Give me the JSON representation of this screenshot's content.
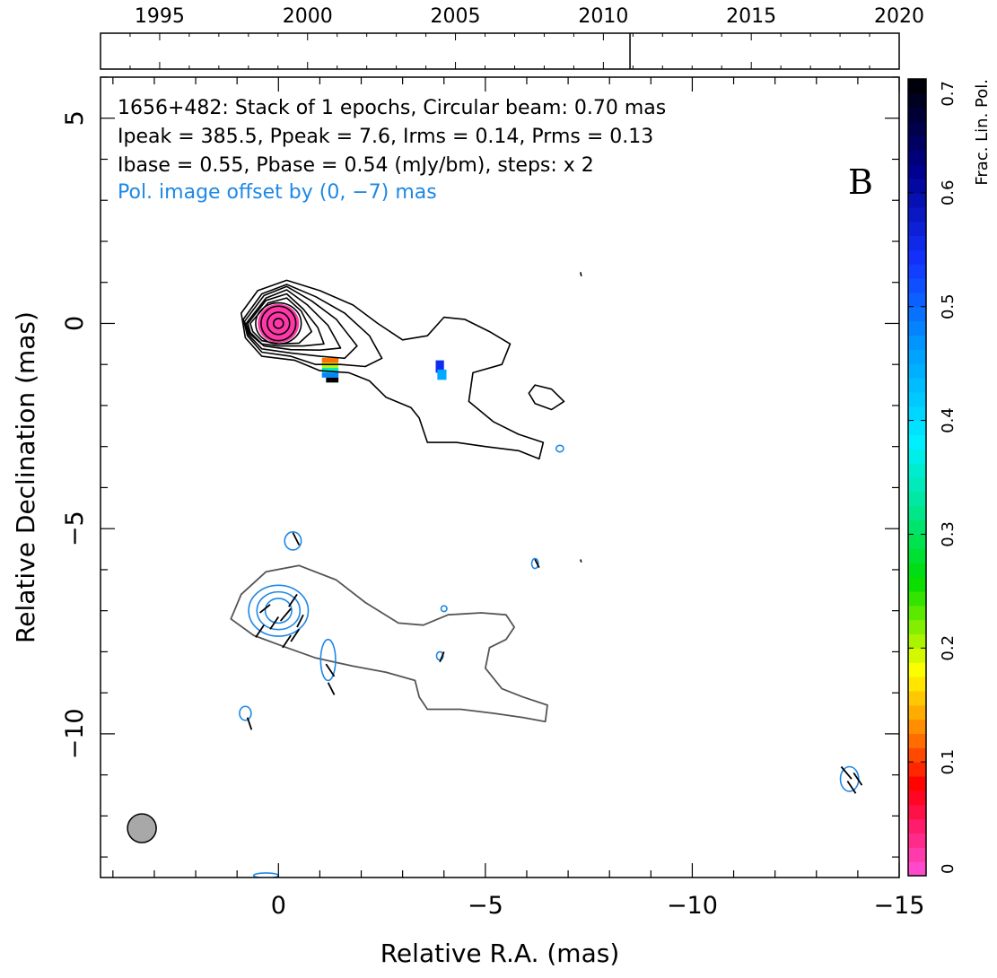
{
  "chart_data": {
    "type": "contour",
    "source": "1656+482",
    "header_lines": [
      "1656+482: Stack of 1 epochs, Circular beam: 0.70 mas",
      "Ipeak = 385.5, Ppeak = 7.6, Irms = 0.14, Prms = 0.13",
      "Ibase = 0.55, Pbase = 0.54 (mJy/bm), steps: x 2"
    ],
    "offset_note": "Pol. image offset by (0, −7) mas",
    "panel_label": "B",
    "xlabel": "Relative R.A. (mas)",
    "ylabel": "Relative Declination (mas)",
    "xlim": [
      4.3,
      -15
    ],
    "ylim": [
      -13.5,
      6
    ],
    "x_ticks": [
      0,
      -5,
      -10,
      -15
    ],
    "x_tick_labels": [
      "0",
      "−5",
      "−10",
      "−15"
    ],
    "y_ticks": [
      5,
      0,
      -5,
      -10
    ],
    "y_tick_labels": [
      "5",
      "0",
      "−5",
      "−10"
    ],
    "beam": {
      "ra": 3.3,
      "dec": -12.3,
      "diameter": 0.7
    },
    "timeline": {
      "range": [
        1993,
        2020
      ],
      "years": [
        1995,
        2000,
        2005,
        2010,
        2015,
        2020
      ],
      "year_labels": [
        "1995",
        "2000",
        "2005",
        "2010",
        "2015",
        "2020"
      ],
      "epochs": [
        2010.9
      ]
    },
    "colorbar": {
      "label": "Frac. Lin. Pol.",
      "range": [
        0,
        0.7
      ],
      "ticks": [
        0,
        0.1,
        0.2,
        0.3,
        0.4,
        0.5,
        0.6,
        0.7
      ],
      "tick_labels": [
        "0",
        "0.1",
        "0.2",
        "0.3",
        "0.4",
        "0.5",
        "0.6",
        "0.7"
      ]
    },
    "intensity_contours": [
      {
        "level": 1,
        "points": [
          [
            0.9,
            0.25
          ],
          [
            0.5,
            0.8
          ],
          [
            -0.2,
            1.05
          ],
          [
            -1,
            0.8
          ],
          [
            -1.8,
            0.45
          ],
          [
            -2.4,
            0
          ],
          [
            -3,
            -0.4
          ],
          [
            -3.6,
            -0.3
          ],
          [
            -4,
            0.15
          ],
          [
            -4.5,
            0.1
          ],
          [
            -5.1,
            -0.2
          ],
          [
            -5.6,
            -0.5
          ],
          [
            -5.4,
            -1
          ],
          [
            -4.7,
            -1.2
          ],
          [
            -4.6,
            -1.9
          ],
          [
            -5.2,
            -2.4
          ],
          [
            -5.8,
            -2.7
          ],
          [
            -6.4,
            -2.9
          ],
          [
            -6.3,
            -3.3
          ],
          [
            -5.8,
            -3.1
          ],
          [
            -5,
            -3
          ],
          [
            -4.3,
            -2.9
          ],
          [
            -3.6,
            -2.9
          ],
          [
            -3.4,
            -2.3
          ],
          [
            -3.2,
            -2.05
          ],
          [
            -2.6,
            -1.8
          ],
          [
            -2.2,
            -1.4
          ],
          [
            -1.7,
            -1.2
          ],
          [
            -1,
            -1.15
          ],
          [
            -0.4,
            -0.9
          ],
          [
            0.4,
            -0.8
          ],
          [
            0.8,
            -0.35
          ]
        ]
      },
      {
        "level": 2,
        "points": [
          [
            0.85,
            0.1
          ],
          [
            0.4,
            0.72
          ],
          [
            -0.2,
            0.95
          ],
          [
            -0.9,
            0.65
          ],
          [
            -1.6,
            0.25
          ],
          [
            -2.2,
            -0.3
          ],
          [
            -2.5,
            -0.85
          ],
          [
            -2.1,
            -1.05
          ],
          [
            -1.5,
            -1
          ],
          [
            -0.9,
            -1
          ],
          [
            -0.3,
            -0.8
          ],
          [
            0.4,
            -0.7
          ],
          [
            0.75,
            -0.3
          ]
        ]
      },
      {
        "level": 3,
        "points": [
          [
            0.82,
            0.05
          ],
          [
            0.35,
            0.68
          ],
          [
            -0.2,
            0.9
          ],
          [
            -0.8,
            0.55
          ],
          [
            -1.4,
            0.1
          ],
          [
            -1.9,
            -0.55
          ],
          [
            -1.6,
            -0.85
          ],
          [
            -1,
            -0.8
          ],
          [
            -0.3,
            -0.72
          ],
          [
            0.4,
            -0.62
          ],
          [
            0.72,
            -0.28
          ]
        ]
      },
      {
        "level": 4,
        "points": [
          [
            0.78,
            0
          ],
          [
            0.3,
            0.62
          ],
          [
            -0.2,
            0.82
          ],
          [
            -0.7,
            0.45
          ],
          [
            -1.2,
            -0.05
          ],
          [
            -1.5,
            -0.6
          ],
          [
            -1,
            -0.65
          ],
          [
            -0.3,
            -0.64
          ],
          [
            0.35,
            -0.55
          ],
          [
            0.7,
            -0.25
          ]
        ]
      },
      {
        "level": 5,
        "points": [
          [
            0.74,
            0
          ],
          [
            0.3,
            0.56
          ],
          [
            -0.2,
            0.72
          ],
          [
            -0.6,
            0.35
          ],
          [
            -0.95,
            -0.1
          ],
          [
            -1.1,
            -0.5
          ],
          [
            -0.6,
            -0.55
          ],
          [
            0,
            -0.55
          ],
          [
            0.4,
            -0.5
          ],
          [
            0.68,
            -0.22
          ]
        ]
      },
      {
        "level": 6,
        "points": [
          [
            0.68,
            0
          ],
          [
            0.25,
            0.5
          ],
          [
            -0.2,
            0.62
          ],
          [
            -0.55,
            0.3
          ],
          [
            -0.8,
            -0.2
          ],
          [
            -0.5,
            -0.48
          ],
          [
            0,
            -0.5
          ],
          [
            0.4,
            -0.42
          ],
          [
            0.62,
            -0.2
          ]
        ]
      },
      {
        "level": 7,
        "ellipse": [
          0,
          0,
          0.55,
          0.5
        ]
      },
      {
        "level": 8,
        "ellipse": [
          0,
          0,
          0.42,
          0.42
        ]
      },
      {
        "level": 9,
        "ellipse": [
          0,
          0,
          0.27,
          0.27
        ]
      },
      {
        "level": 10,
        "ellipse": [
          0,
          0,
          0.12,
          0.12
        ]
      },
      {
        "level": 1,
        "points": [
          [
            -6.2,
            -1.5
          ],
          [
            -6.6,
            -1.6
          ],
          [
            -6.9,
            -1.9
          ],
          [
            -6.6,
            -2.1
          ],
          [
            -6.2,
            -1.95
          ],
          [
            -6.05,
            -1.7
          ]
        ]
      },
      {
        "level": 1,
        "points": [
          [
            -7.3,
            1.25
          ],
          [
            -7.32,
            1.15
          ]
        ]
      },
      {
        "level": 1,
        "points": [
          [
            -7.3,
            -5.75
          ],
          [
            -7.32,
            -5.82
          ]
        ]
      }
    ],
    "total_intensity_outline_offset": {
      "dec_offset": -7,
      "points": [
        [
          1.15,
          -7.2
        ],
        [
          0.9,
          -6.6
        ],
        [
          0.3,
          -6.05
        ],
        [
          -0.5,
          -5.9
        ],
        [
          -1.4,
          -6.25
        ],
        [
          -2.1,
          -6.8
        ],
        [
          -2.9,
          -7.3
        ],
        [
          -3.5,
          -7.35
        ],
        [
          -4.1,
          -7.1
        ],
        [
          -4.9,
          -7.05
        ],
        [
          -5.5,
          -7.1
        ],
        [
          -5.7,
          -7.4
        ],
        [
          -5.5,
          -7.7
        ],
        [
          -5.1,
          -7.9
        ],
        [
          -5,
          -8.4
        ],
        [
          -5.4,
          -8.9
        ],
        [
          -5.9,
          -9.1
        ],
        [
          -6.5,
          -9.3
        ],
        [
          -6.45,
          -9.7
        ],
        [
          -5.9,
          -9.6
        ],
        [
          -5.2,
          -9.5
        ],
        [
          -4.4,
          -9.4
        ],
        [
          -3.6,
          -9.4
        ],
        [
          -3.4,
          -9.1
        ],
        [
          -3.3,
          -8.7
        ],
        [
          -2.6,
          -8.5
        ],
        [
          -1.8,
          -8.35
        ],
        [
          -0.9,
          -8.15
        ],
        [
          -0.2,
          -7.9
        ],
        [
          0.6,
          -7.6
        ]
      ]
    },
    "pol_contours": [
      {
        "ellipse": [
          0,
          -7,
          0.72,
          0.62
        ]
      },
      {
        "ellipse": [
          0,
          -7,
          0.52,
          0.46
        ]
      },
      {
        "ellipse": [
          0,
          -7,
          0.32,
          0.3
        ]
      },
      {
        "ellipse": [
          -0.35,
          -5.3,
          0.2,
          0.22
        ]
      },
      {
        "ellipse": [
          -1.2,
          -8.2,
          0.18,
          0.5
        ]
      },
      {
        "ellipse": [
          0.8,
          -9.5,
          0.14,
          0.17
        ]
      },
      {
        "ellipse": [
          -3.9,
          -8.1,
          0.08,
          0.1
        ]
      },
      {
        "ellipse": [
          -4,
          -6.95,
          0.07,
          0.07
        ]
      },
      {
        "ellipse": [
          -6.2,
          -5.85,
          0.08,
          0.12
        ]
      },
      {
        "ellipse": [
          -6.8,
          -3.05,
          0.09,
          0.08
        ]
      },
      {
        "ellipse": [
          -13.8,
          -11.1,
          0.22,
          0.3
        ]
      },
      {
        "ellipse": [
          0.3,
          -13.45,
          0.3,
          0.06
        ]
      }
    ],
    "evpa_ticks": [
      [
        -0.45,
        -6.6,
        -0.25,
        -6.9
      ],
      [
        -0.3,
        -6.95,
        -0.05,
        -7.25
      ],
      [
        0.0,
        -7.15,
        0.2,
        -7.45
      ],
      [
        -0.6,
        -7.1,
        -0.45,
        -7.4
      ],
      [
        -0.5,
        -7.45,
        -0.3,
        -7.75
      ],
      [
        0.2,
        -6.85,
        0.45,
        -7.05
      ],
      [
        -0.3,
        -7.6,
        -0.1,
        -7.9
      ],
      [
        0.35,
        -7.35,
        0.55,
        -7.65
      ],
      [
        -0.35,
        -5.1,
        -0.5,
        -5.4
      ],
      [
        -1.15,
        -8.3,
        -1.35,
        -8.6
      ],
      [
        -1.2,
        -8.75,
        -1.35,
        -9.05
      ],
      [
        0.75,
        -9.6,
        0.65,
        -9.9
      ],
      [
        -4.0,
        -8.0,
        -3.9,
        -8.25
      ],
      [
        -6.2,
        -5.75,
        -6.3,
        -5.95
      ],
      [
        -13.6,
        -10.8,
        -13.85,
        -11.1
      ],
      [
        -13.75,
        -11.15,
        -13.95,
        -11.45
      ],
      [
        -13.9,
        -10.95,
        -14.1,
        -11.25
      ]
    ],
    "fractional_pol_pixels": [
      {
        "ra": 0.0,
        "dec": 0.0,
        "w": 1.0,
        "h": 0.95,
        "value": 0.02
      },
      {
        "ra": -1.25,
        "dec": -0.9,
        "w": 0.4,
        "h": 0.12,
        "value": 0.12
      },
      {
        "ra": -1.25,
        "dec": -1.02,
        "w": 0.4,
        "h": 0.12,
        "value": 0.2
      },
      {
        "ra": -1.25,
        "dec": -1.14,
        "w": 0.4,
        "h": 0.12,
        "value": 0.35
      },
      {
        "ra": -1.25,
        "dec": -1.26,
        "w": 0.4,
        "h": 0.12,
        "value": 0.48
      },
      {
        "ra": -1.3,
        "dec": -1.38,
        "w": 0.3,
        "h": 0.12,
        "value": 0.7
      },
      {
        "ra": -3.9,
        "dec": -1.05,
        "w": 0.2,
        "h": 0.3,
        "value": 0.55
      },
      {
        "ra": -3.95,
        "dec": -1.25,
        "w": 0.22,
        "h": 0.25,
        "value": 0.45
      }
    ]
  }
}
